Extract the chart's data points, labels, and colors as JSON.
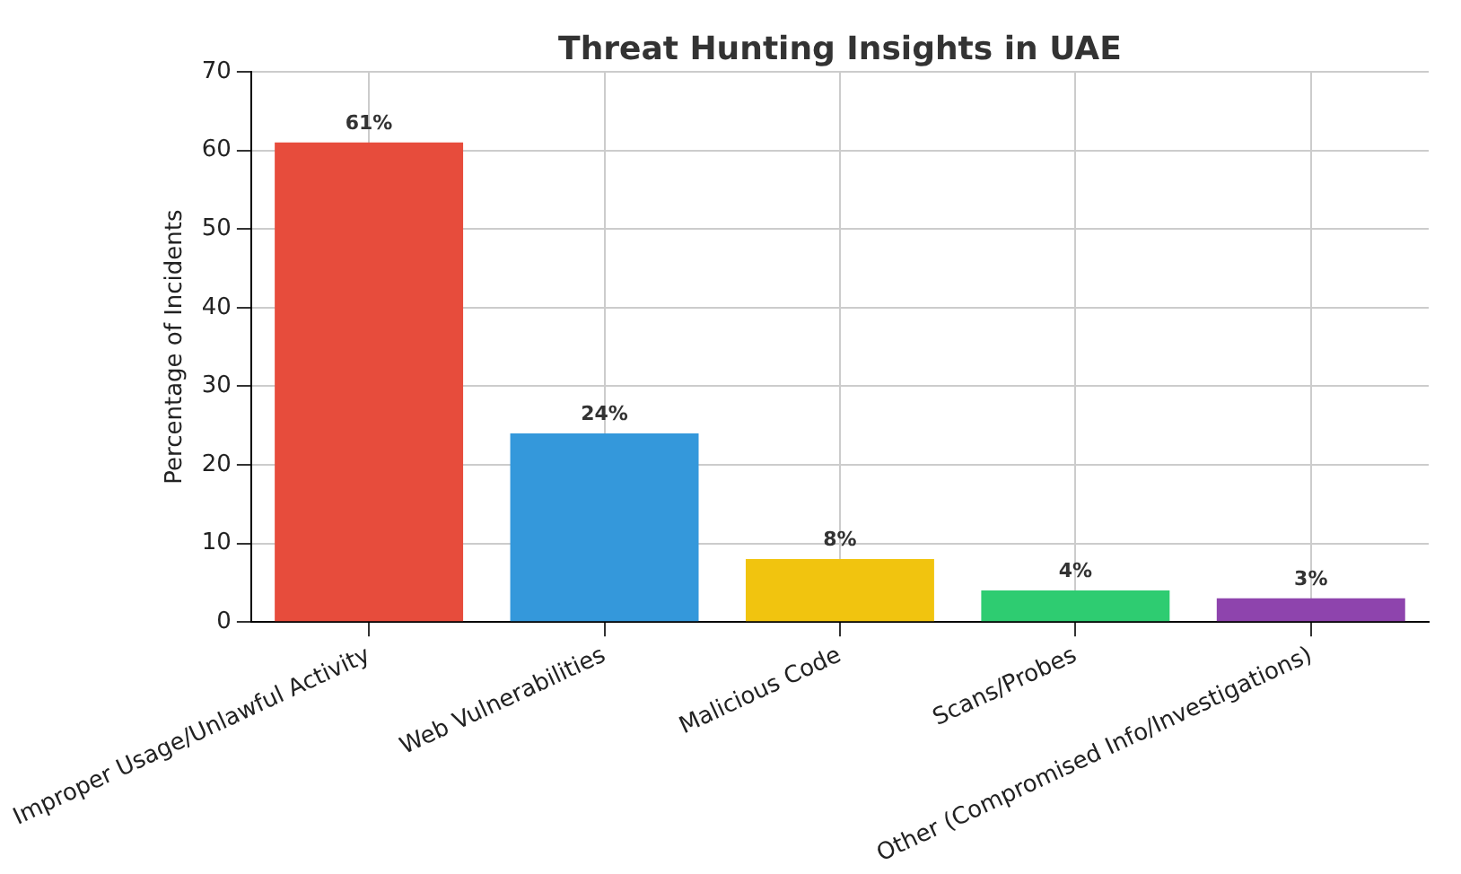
{
  "chart_data": {
    "type": "bar",
    "title": "Threat Hunting Insights in UAE",
    "ylabel": "Percentage of Incidents",
    "categories": [
      "Improper Usage/Unlawful Activity",
      "Web Vulnerabilities",
      "Malicious Code",
      "Scans/Probes",
      "Other (Compromised Info/Investigations)"
    ],
    "values": [
      61,
      24,
      8,
      4,
      3
    ],
    "colors": [
      "#e74c3c",
      "#3498db",
      "#f1c40f",
      "#2ecc71",
      "#8e44ad"
    ],
    "value_labels": [
      "61%",
      "24%",
      "8%",
      "4%",
      "3%"
    ],
    "ylim": [
      0,
      70
    ],
    "yticks": [
      0,
      10,
      20,
      30,
      40,
      50,
      60,
      70
    ],
    "grid": true
  }
}
